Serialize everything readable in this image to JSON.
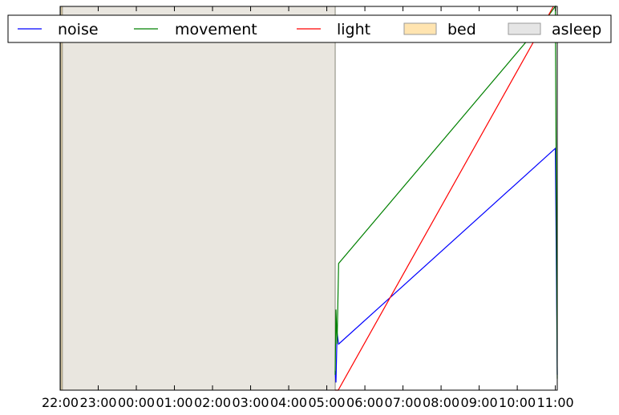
{
  "chart_data": {
    "type": "line",
    "title": "",
    "xlabel": "",
    "ylabel": "",
    "x_ticks": [
      "22:00",
      "23:00",
      "00:00",
      "01:00",
      "02:00",
      "03:00",
      "04:00",
      "05:00",
      "06:00",
      "07:00",
      "08:00",
      "09:00",
      "10:00",
      "11:00"
    ],
    "tick_times_hours": [
      22,
      23,
      24,
      25,
      26,
      27,
      28,
      29,
      30,
      31,
      32,
      33,
      34,
      35
    ],
    "xlim_hours": [
      22,
      35.05
    ],
    "ylim": [
      0,
      1
    ],
    "y_ticks_visible": false,
    "grid": false,
    "legend_position": "top",
    "spans": [
      {
        "name": "bed",
        "start": 22.02,
        "end": 29.22,
        "color": "#ffe4b0"
      },
      {
        "name": "asleep",
        "start": 22.06,
        "end": 29.22,
        "color": "#e5e5e5"
      }
    ],
    "series": [
      {
        "name": "noise",
        "color": "#0000ff",
        "points": [
          [
            29.22,
            0.05
          ],
          [
            29.24,
            0.02
          ],
          [
            29.27,
            0.15
          ],
          [
            29.31,
            0.12
          ],
          [
            35.0,
            0.63
          ],
          [
            35.05,
            0.04
          ]
        ]
      },
      {
        "name": "movement",
        "color": "#008000",
        "points": [
          [
            29.22,
            0.04
          ],
          [
            29.24,
            0.21
          ],
          [
            29.27,
            0.12
          ],
          [
            29.31,
            0.33
          ],
          [
            34.85,
            0.98
          ],
          [
            35.0,
            1.0
          ],
          [
            35.05,
            0.03
          ]
        ]
      },
      {
        "name": "light",
        "color": "#ff0000",
        "points": [
          [
            29.22,
            0.0
          ],
          [
            29.3,
            0.0
          ],
          [
            34.95,
            1.0
          ]
        ]
      }
    ],
    "legend": [
      {
        "label": "noise",
        "kind": "line",
        "color": "#0000ff"
      },
      {
        "label": "movement",
        "kind": "line",
        "color": "#008000"
      },
      {
        "label": "light",
        "kind": "line",
        "color": "#ff0000"
      },
      {
        "label": "bed",
        "kind": "patch",
        "color": "#ffe4b0"
      },
      {
        "label": "asleep",
        "kind": "patch",
        "color": "#e5e5e5"
      }
    ]
  }
}
